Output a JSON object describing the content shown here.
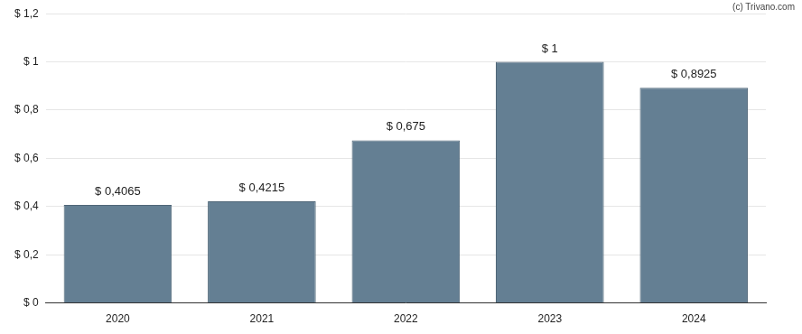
{
  "chart_data": {
    "type": "bar",
    "annotation": "(c) Trivano.com",
    "categories": [
      "2020",
      "2021",
      "2022",
      "2023",
      "2024"
    ],
    "values": [
      0.4065,
      0.4215,
      0.675,
      1,
      0.8925
    ],
    "value_labels": [
      "$ 0,4065",
      "$ 0,4215",
      "$ 0,675",
      "$ 1",
      "$ 0,8925"
    ],
    "color": "#647f93",
    "ylim": [
      0,
      1.2
    ],
    "yticks": [
      {
        "value": 0,
        "label": "$ 0"
      },
      {
        "value": 0.2,
        "label": "$ 0,2"
      },
      {
        "value": 0.4,
        "label": "$ 0,4"
      },
      {
        "value": 0.6,
        "label": "$ 0,6"
      },
      {
        "value": 0.8,
        "label": "$ 0,8"
      },
      {
        "value": 1,
        "label": "$ 1"
      },
      {
        "value": 1.2,
        "label": "$ 1,2"
      }
    ],
    "grid": true,
    "data_labels": true
  }
}
